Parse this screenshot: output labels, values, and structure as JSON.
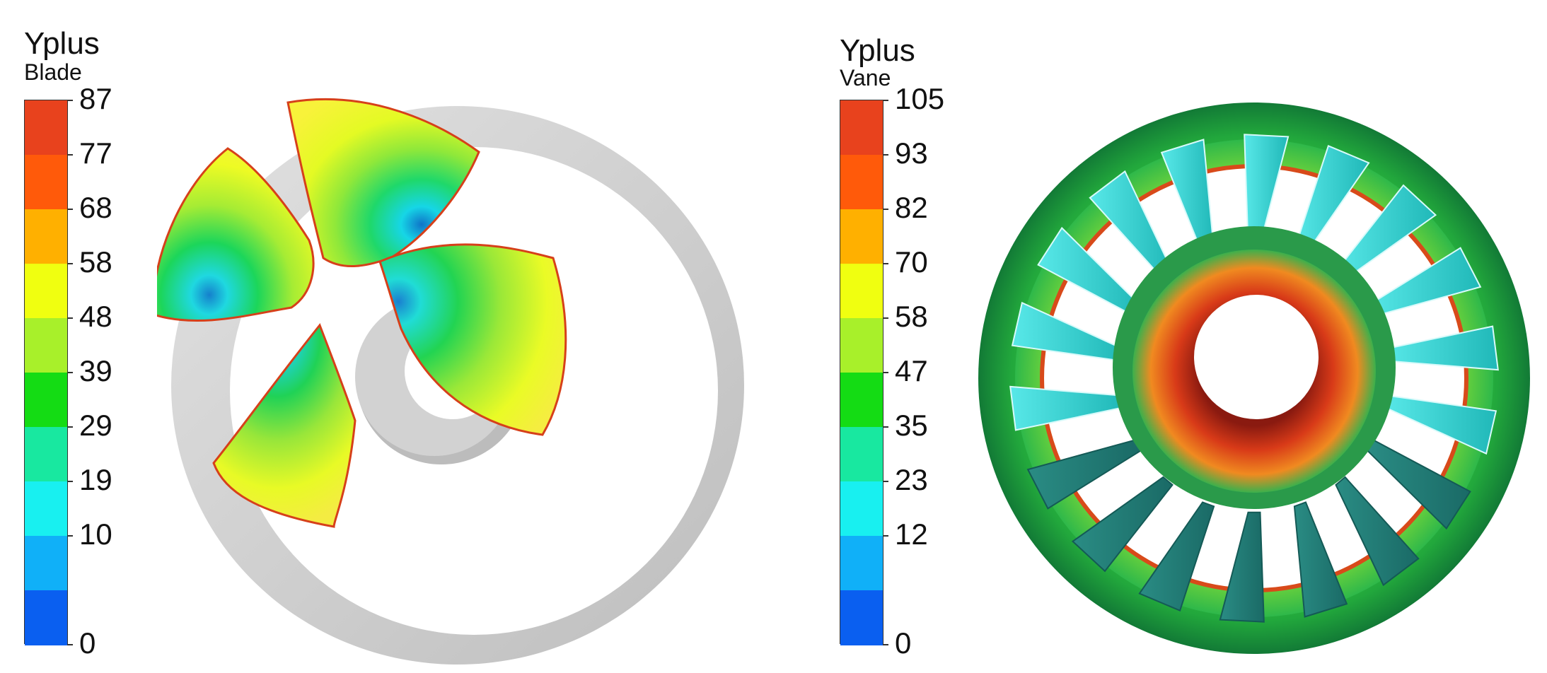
{
  "blade_legend": {
    "title": "Yplus",
    "subtitle": "Blade",
    "ticks": [
      "87",
      "77",
      "68",
      "58",
      "48",
      "39",
      "29",
      "19",
      "10",
      "0"
    ],
    "colors": [
      "#e8421d",
      "#ff5a0a",
      "#ffb000",
      "#f0ff10",
      "#a8f02a",
      "#14dc14",
      "#18e8a0",
      "#18f0f0",
      "#10b0f8",
      "#0a5ff0"
    ]
  },
  "vane_legend": {
    "title": "Yplus",
    "subtitle": "Vane",
    "ticks": [
      "105",
      "93",
      "82",
      "70",
      "58",
      "47",
      "35",
      "23",
      "12",
      "0"
    ],
    "colors": [
      "#e8421d",
      "#ff5a0a",
      "#ffb000",
      "#f0ff10",
      "#a8f02a",
      "#14dc14",
      "#18e8a0",
      "#18f0f0",
      "#10b0f8",
      "#0a5ff0"
    ]
  },
  "blade_render": {
    "blade_count": 4,
    "shroud_color": "#cfcfcf",
    "hub_color": "#d2d2d2",
    "edge_color": "#d6401a"
  },
  "vane_render": {
    "vane_count": 18,
    "casing_color": "#1f9a3a",
    "vane_color": "#2aa8b0",
    "hub_color": "#c8341a"
  }
}
